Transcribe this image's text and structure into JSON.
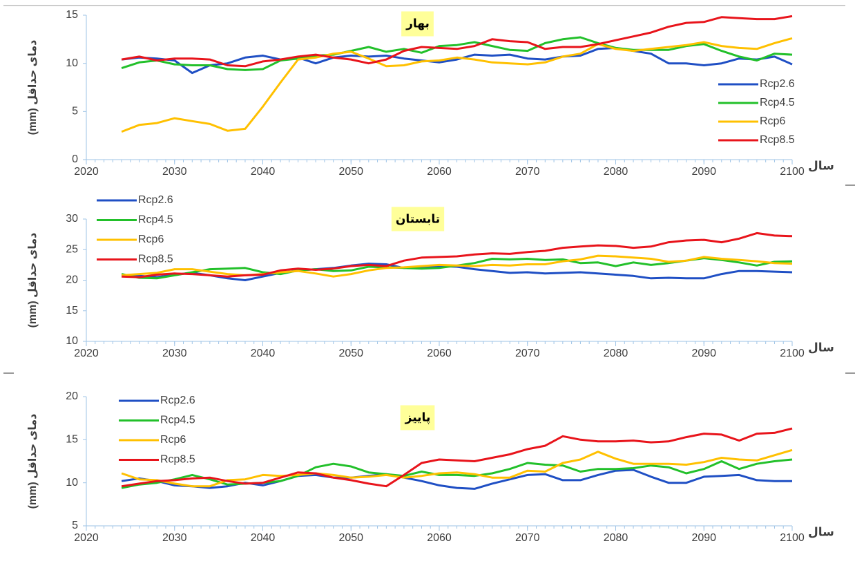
{
  "chart_data": [
    {
      "type": "line",
      "title": "بهار",
      "ylabel": "دمای حداقل (mm)",
      "xlabel": "سال",
      "legend": "right",
      "x": [
        2024,
        2026,
        2028,
        2030,
        2032,
        2034,
        2036,
        2038,
        2040,
        2042,
        2044,
        2046,
        2048,
        2050,
        2052,
        2054,
        2056,
        2058,
        2060,
        2062,
        2064,
        2066,
        2068,
        2070,
        2072,
        2074,
        2076,
        2078,
        2080,
        2082,
        2084,
        2086,
        2088,
        2090,
        2092,
        2094,
        2096,
        2098,
        2100
      ],
      "xlim": [
        2020,
        2100
      ],
      "xticks": [
        2020,
        2030,
        2040,
        2050,
        2060,
        2070,
        2080,
        2090,
        2100
      ],
      "ylim": [
        0,
        15
      ],
      "yticks": [
        0,
        5,
        10,
        15
      ],
      "series": [
        {
          "name": "Rcp2.6",
          "color": "#1f4fc4",
          "values": [
            10.4,
            10.6,
            10.5,
            10.3,
            9.0,
            9.8,
            10.0,
            10.6,
            10.8,
            10.4,
            10.6,
            10.0,
            10.6,
            10.8,
            10.7,
            10.8,
            10.5,
            10.3,
            10.1,
            10.4,
            10.9,
            10.8,
            10.9,
            10.5,
            10.4,
            10.7,
            10.8,
            11.5,
            11.6,
            11.3,
            11.0,
            10.0,
            10.0,
            9.8,
            10.0,
            10.5,
            10.4,
            10.7,
            9.9
          ]
        },
        {
          "name": "Rcp4.5",
          "color": "#22c02a",
          "values": [
            9.5,
            10.1,
            10.3,
            9.9,
            9.8,
            9.8,
            9.4,
            9.3,
            9.4,
            10.3,
            10.5,
            10.8,
            10.9,
            11.3,
            11.7,
            11.2,
            11.5,
            11.1,
            11.8,
            11.9,
            12.2,
            11.8,
            11.4,
            11.3,
            12.1,
            12.5,
            12.7,
            12.1,
            11.6,
            11.4,
            11.4,
            11.4,
            11.8,
            12.0,
            11.3,
            10.7,
            10.3,
            11.0,
            10.9
          ]
        },
        {
          "name": "Rcp6",
          "color": "#ffc000",
          "values": [
            2.9,
            3.6,
            3.8,
            4.3,
            4.0,
            3.7,
            3.0,
            3.2,
            5.5,
            8.0,
            10.4,
            10.6,
            11.0,
            11.2,
            10.5,
            9.7,
            9.8,
            10.2,
            10.3,
            10.6,
            10.4,
            10.1,
            10.0,
            9.9,
            10.1,
            10.7,
            11.0,
            12.0,
            11.5,
            11.3,
            11.5,
            11.7,
            11.9,
            12.2,
            11.8,
            11.6,
            11.5,
            12.1,
            12.6
          ]
        },
        {
          "name": "Rcp8.5",
          "color": "#e8141b",
          "values": [
            10.4,
            10.7,
            10.3,
            10.5,
            10.5,
            10.4,
            9.8,
            9.7,
            10.2,
            10.4,
            10.7,
            10.9,
            10.6,
            10.4,
            10.0,
            10.4,
            11.3,
            11.7,
            11.6,
            11.5,
            11.8,
            12.5,
            12.3,
            12.2,
            11.5,
            11.7,
            11.7,
            12.0,
            12.4,
            12.8,
            13.2,
            13.8,
            14.2,
            14.3,
            14.8,
            14.7,
            14.6,
            14.6,
            14.9
          ]
        }
      ]
    },
    {
      "type": "line",
      "title": "تابستان",
      "ylabel": "دمای حداقل (mm)",
      "xlabel": "سال",
      "legend": "upper left",
      "x": [
        2024,
        2026,
        2028,
        2030,
        2032,
        2034,
        2036,
        2038,
        2040,
        2042,
        2044,
        2046,
        2048,
        2050,
        2052,
        2054,
        2056,
        2058,
        2060,
        2062,
        2064,
        2066,
        2068,
        2070,
        2072,
        2074,
        2076,
        2078,
        2080,
        2082,
        2084,
        2086,
        2088,
        2090,
        2092,
        2094,
        2096,
        2098,
        2100
      ],
      "xlim": [
        2020,
        2100
      ],
      "xticks": [
        2020,
        2030,
        2040,
        2050,
        2060,
        2070,
        2080,
        2090,
        2100
      ],
      "ylim": [
        10,
        30
      ],
      "yticks": [
        10,
        15,
        20,
        25,
        30
      ],
      "series": [
        {
          "name": "Rcp2.6",
          "color": "#1f4fc4",
          "values": [
            20.8,
            20.7,
            20.5,
            20.9,
            21.2,
            20.8,
            20.3,
            20.0,
            20.6,
            21.2,
            21.6,
            21.8,
            22.0,
            22.4,
            22.7,
            22.6,
            22.0,
            22.2,
            22.3,
            22.2,
            21.8,
            21.5,
            21.2,
            21.3,
            21.1,
            21.2,
            21.3,
            21.1,
            20.9,
            20.7,
            20.3,
            20.4,
            20.3,
            20.3,
            21.0,
            21.5,
            21.5,
            21.4,
            21.3
          ]
        },
        {
          "name": "Rcp4.5",
          "color": "#22c02a",
          "values": [
            21.0,
            20.4,
            20.3,
            20.8,
            21.3,
            21.8,
            21.9,
            22.0,
            21.3,
            21.0,
            21.6,
            21.8,
            21.5,
            21.6,
            22.2,
            22.1,
            22.0,
            21.9,
            22.0,
            22.4,
            22.8,
            23.5,
            23.4,
            23.5,
            23.3,
            23.4,
            22.8,
            22.9,
            22.3,
            22.9,
            22.5,
            22.8,
            23.2,
            23.6,
            23.3,
            22.9,
            22.4,
            23.0,
            23.1
          ]
        },
        {
          "name": "Rcp6",
          "color": "#ffc000",
          "values": [
            20.8,
            21.0,
            21.2,
            21.8,
            21.8,
            21.4,
            21.0,
            20.8,
            21.0,
            21.3,
            21.5,
            21.1,
            20.6,
            21.0,
            21.6,
            22.0,
            22.1,
            22.3,
            22.5,
            22.4,
            22.3,
            22.5,
            22.4,
            22.6,
            22.6,
            23.1,
            23.4,
            24.0,
            23.9,
            23.7,
            23.5,
            23.0,
            23.2,
            23.8,
            23.5,
            23.3,
            23.1,
            22.8,
            22.7
          ]
        },
        {
          "name": "Rcp8.5",
          "color": "#e8141b",
          "values": [
            20.6,
            20.5,
            20.9,
            21.1,
            21.0,
            20.8,
            20.6,
            20.8,
            20.9,
            21.6,
            21.9,
            21.7,
            21.9,
            22.3,
            22.5,
            22.3,
            23.2,
            23.7,
            23.8,
            23.9,
            24.2,
            24.4,
            24.3,
            24.6,
            24.8,
            25.3,
            25.5,
            25.7,
            25.6,
            25.3,
            25.5,
            26.2,
            26.5,
            26.6,
            26.2,
            26.8,
            27.7,
            27.3,
            27.2
          ]
        }
      ]
    },
    {
      "type": "line",
      "title": "پاییز",
      "ylabel": "دمای حداقل (mm)",
      "xlabel": "سال",
      "legend": "upper left",
      "x": [
        2024,
        2026,
        2028,
        2030,
        2032,
        2034,
        2036,
        2038,
        2040,
        2042,
        2044,
        2046,
        2048,
        2050,
        2052,
        2054,
        2056,
        2058,
        2060,
        2062,
        2064,
        2066,
        2068,
        2070,
        2072,
        2074,
        2076,
        2078,
        2080,
        2082,
        2084,
        2086,
        2088,
        2090,
        2092,
        2094,
        2096,
        2098,
        2100
      ],
      "xlim": [
        2020,
        2100
      ],
      "xticks": [
        2020,
        2030,
        2040,
        2050,
        2060,
        2070,
        2080,
        2090,
        2100
      ],
      "ylim": [
        5,
        20
      ],
      "yticks": [
        5,
        10,
        15,
        20
      ],
      "series": [
        {
          "name": "Rcp2.6",
          "color": "#1f4fc4",
          "values": [
            10.2,
            10.5,
            10.2,
            9.7,
            9.6,
            9.4,
            9.6,
            10.0,
            9.7,
            10.2,
            10.8,
            10.9,
            10.6,
            10.6,
            10.8,
            11.0,
            10.6,
            10.2,
            9.7,
            9.4,
            9.3,
            9.9,
            10.4,
            10.9,
            11.0,
            10.3,
            10.3,
            10.9,
            11.4,
            11.5,
            10.7,
            10.0,
            10.0,
            10.7,
            10.8,
            10.9,
            10.3,
            10.2,
            10.2
          ]
        },
        {
          "name": "Rcp4.5",
          "color": "#22c02a",
          "values": [
            9.4,
            9.8,
            10.0,
            10.4,
            10.9,
            10.4,
            9.8,
            9.9,
            10.0,
            10.2,
            10.8,
            11.8,
            12.2,
            11.9,
            11.2,
            11.0,
            10.8,
            11.3,
            10.9,
            10.9,
            10.8,
            11.1,
            11.6,
            12.3,
            12.1,
            12.0,
            11.3,
            11.6,
            11.6,
            11.7,
            12.0,
            11.8,
            11.1,
            11.6,
            12.5,
            11.6,
            12.2,
            12.5,
            12.7
          ]
        },
        {
          "name": "Rcp6",
          "color": "#ffc000",
          "values": [
            11.1,
            10.4,
            10.3,
            9.9,
            9.6,
            9.6,
            10.3,
            10.4,
            10.9,
            10.8,
            10.9,
            11.1,
            10.9,
            10.6,
            10.7,
            10.9,
            10.6,
            10.8,
            11.1,
            11.2,
            11.0,
            10.6,
            10.6,
            11.4,
            11.3,
            12.3,
            12.7,
            13.6,
            12.8,
            12.2,
            12.2,
            12.2,
            12.1,
            12.4,
            12.9,
            12.7,
            12.6,
            13.2,
            13.8
          ]
        },
        {
          "name": "Rcp8.5",
          "color": "#e8141b",
          "values": [
            9.6,
            9.9,
            10.2,
            10.3,
            10.5,
            10.6,
            10.2,
            9.9,
            10.0,
            10.6,
            11.2,
            11.1,
            10.6,
            10.3,
            9.9,
            9.6,
            10.9,
            12.3,
            12.7,
            12.6,
            12.5,
            12.9,
            13.3,
            13.9,
            14.3,
            15.4,
            15.0,
            14.8,
            14.8,
            14.9,
            14.7,
            14.8,
            15.3,
            15.7,
            15.6,
            14.9,
            15.7,
            15.8,
            16.3
          ]
        }
      ]
    }
  ]
}
